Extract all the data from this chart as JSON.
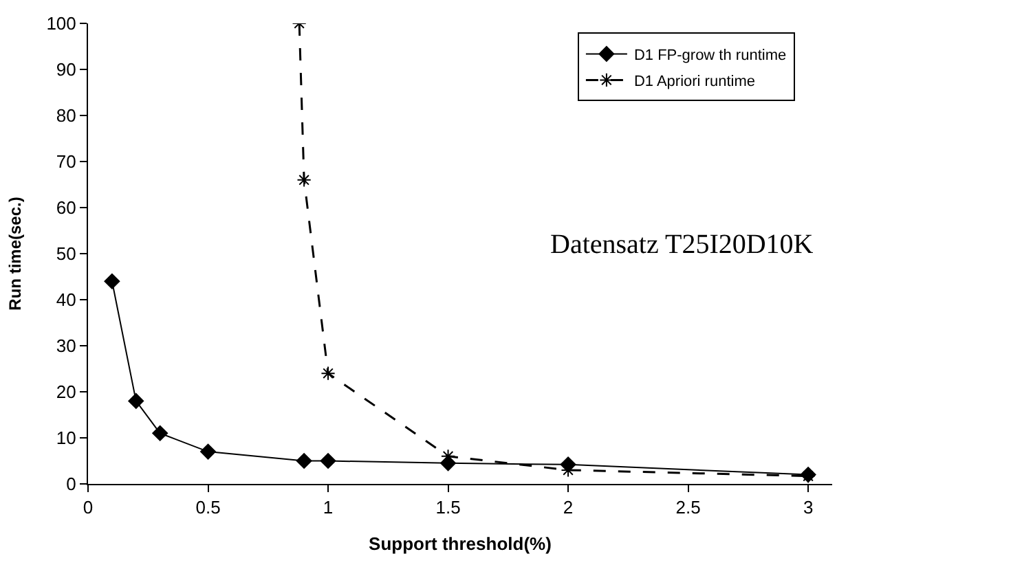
{
  "chart_data": {
    "type": "line",
    "xlabel": "Support threshold(%)",
    "ylabel": "Run time(sec.)",
    "xlim": [
      0,
      3.1
    ],
    "xticks": [
      0,
      0.5,
      1,
      1.5,
      2,
      2.5,
      3
    ],
    "ylim": [
      0,
      100
    ],
    "yticks": [
      0,
      10,
      20,
      30,
      40,
      50,
      60,
      70,
      80,
      90,
      100
    ],
    "legend": "top right",
    "annotations": [
      "Datensatz T25I20D10K"
    ],
    "series": [
      {
        "name": "D1 FP-grow th runtime",
        "color": "#000000",
        "marker": "diamond",
        "line_style": "solid",
        "x": [
          0.1,
          0.2,
          0.3,
          0.5,
          0.9,
          1,
          1.5,
          2,
          3
        ],
        "values": [
          44,
          18,
          11,
          7,
          5,
          5,
          4.5,
          4.2,
          2
        ]
      },
      {
        "name": "D1 Apriori runtime",
        "color": "#000000",
        "marker": "cross",
        "line_style": "dashed",
        "x": [
          0.88,
          0.9,
          1,
          1.5,
          2,
          3
        ],
        "values": [
          100,
          66,
          24,
          6,
          3,
          1.7
        ]
      }
    ]
  }
}
